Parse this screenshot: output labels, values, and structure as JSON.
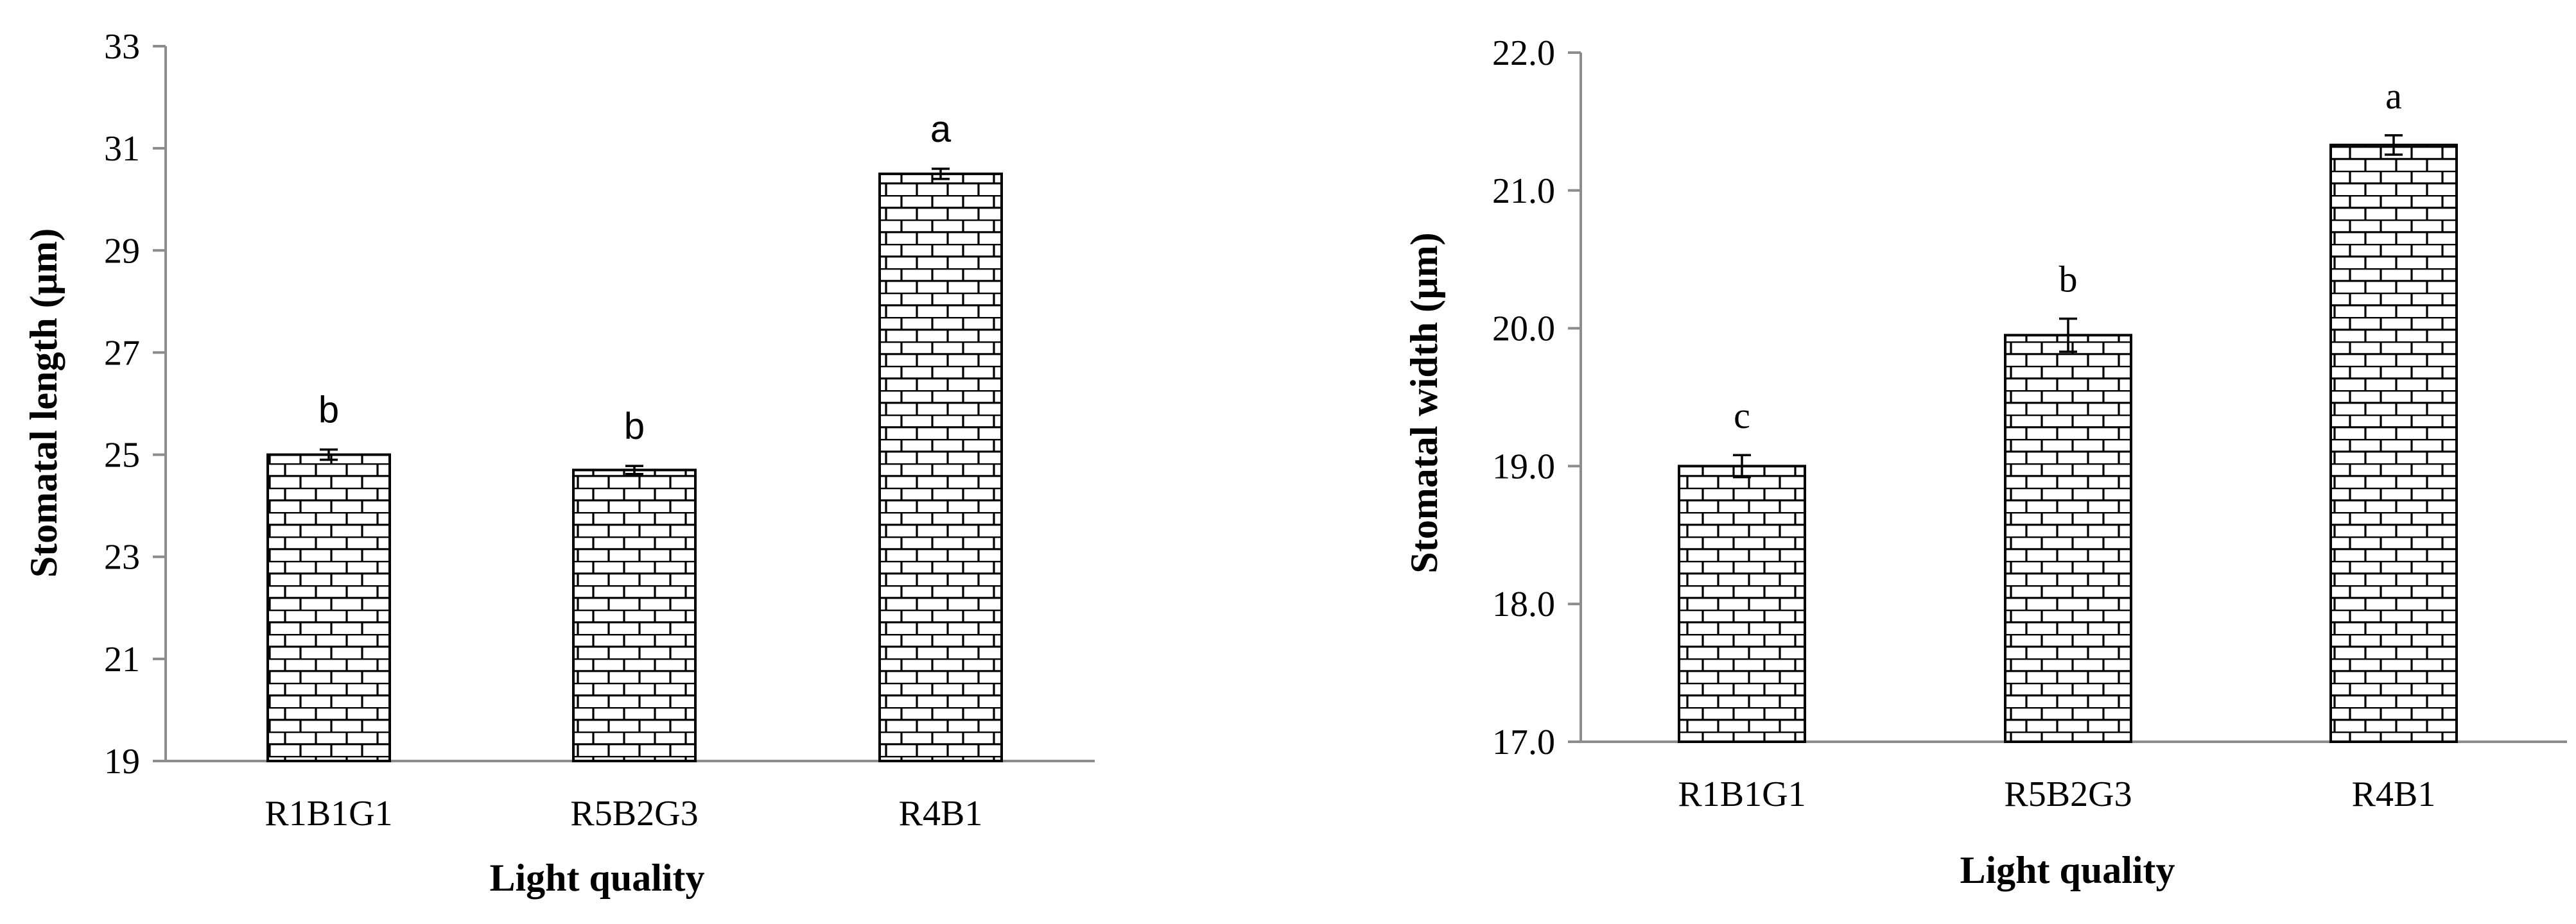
{
  "chart_data": [
    {
      "type": "bar",
      "title": "",
      "xlabel": "Light quality",
      "ylabel": "Stomatal length (µm)",
      "categories": [
        "R1B1G1",
        "R5B2G3",
        "R4B1"
      ],
      "values": [
        25.0,
        24.7,
        30.5
      ],
      "errors": [
        0.1,
        0.08,
        0.1
      ],
      "significance": [
        "b",
        "b",
        "a"
      ],
      "ylim": [
        19,
        33
      ],
      "yticks": [
        "19",
        "21",
        "23",
        "25",
        "27",
        "29",
        "31",
        "33"
      ],
      "bar_fill": "brick pattern",
      "grid": false
    },
    {
      "type": "bar",
      "title": "",
      "xlabel": "Light quality",
      "ylabel": "Stomatal width (µm)",
      "categories": [
        "R1B1G1",
        "R5B2G3",
        "R4B1"
      ],
      "values": [
        19.0,
        19.95,
        21.33
      ],
      "errors": [
        0.08,
        0.12,
        0.07
      ],
      "significance": [
        "c",
        "b",
        "a"
      ],
      "ylim": [
        17.0,
        22.0
      ],
      "yticks": [
        "17.0",
        "18.0",
        "19.0",
        "20.0",
        "21.0",
        "22.0"
      ],
      "bar_fill": "brick pattern",
      "grid": false
    }
  ]
}
